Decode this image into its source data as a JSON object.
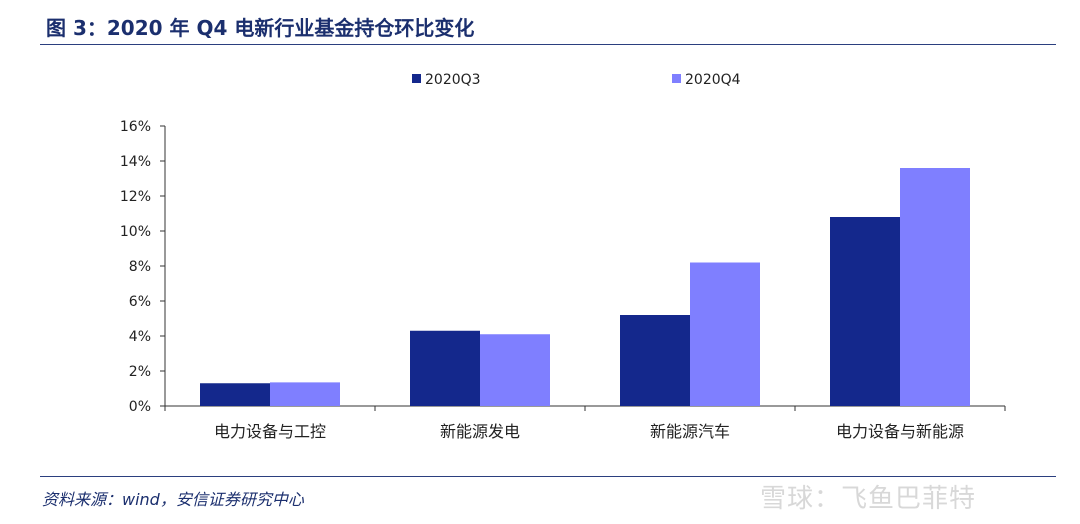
{
  "header": {
    "title": "图 3：2020 年 Q4 电新行业基金持仓环比变化"
  },
  "footer": {
    "source": "资料来源：wind，安信证券研究中心",
    "watermark": "雪球：飞鱼巴菲特"
  },
  "colors": {
    "series1": "#14288c",
    "series2": "#7f7fff",
    "title": "#1b2f6e",
    "axis": "#333333"
  },
  "chart_data": {
    "type": "bar",
    "categories": [
      "电力设备与工控",
      "新能源发电",
      "新能源汽车",
      "电力设备与新能源"
    ],
    "series": [
      {
        "name": "2020Q3",
        "values": [
          1.3,
          4.3,
          5.2,
          10.8
        ]
      },
      {
        "name": "2020Q4",
        "values": [
          1.35,
          4.1,
          8.2,
          13.6
        ]
      }
    ],
    "ylim": [
      0,
      16
    ],
    "yticks": [
      "0%",
      "2%",
      "4%",
      "6%",
      "8%",
      "10%",
      "12%",
      "14%",
      "16%"
    ],
    "legend_position": "top-center",
    "grid": false
  }
}
